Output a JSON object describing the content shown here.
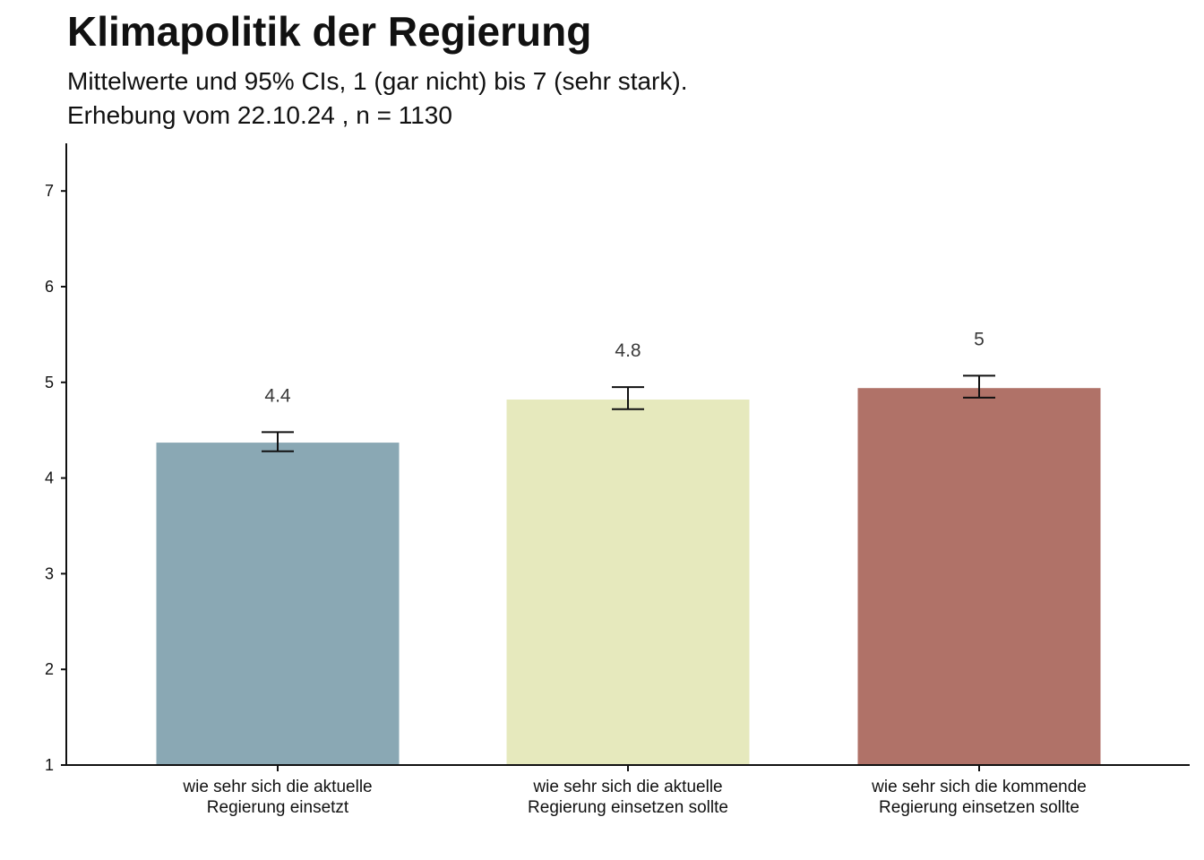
{
  "chart_data": {
    "type": "bar",
    "title": "Klimapolitik der Regierung",
    "subtitle_lines": [
      "Mittelwerte und 95% CIs, 1 (gar nicht) bis 7 (sehr stark).",
      "Erhebung vom 22.10.24 , n = 1130"
    ],
    "categories": [
      [
        "wie sehr sich die aktuelle",
        "Regierung einsetzt"
      ],
      [
        "wie sehr sich die aktuelle",
        "Regierung einsetzen sollte"
      ],
      [
        "wie sehr sich die kommende",
        "Regierung einsetzen sollte"
      ]
    ],
    "values": [
      4.37,
      4.82,
      4.94
    ],
    "ci_low": [
      4.28,
      4.72,
      4.84
    ],
    "ci_high": [
      4.48,
      4.95,
      5.07
    ],
    "data_labels": [
      "4.4",
      "4.8",
      "5"
    ],
    "colors": [
      "#8aa8b4",
      "#e6e9bd",
      "#b07268"
    ],
    "ylim": [
      1,
      7.5
    ],
    "yticks": [
      1,
      2,
      3,
      4,
      5,
      6,
      7
    ],
    "xlabel": "",
    "ylabel": "",
    "grid": false,
    "legend": "none"
  }
}
